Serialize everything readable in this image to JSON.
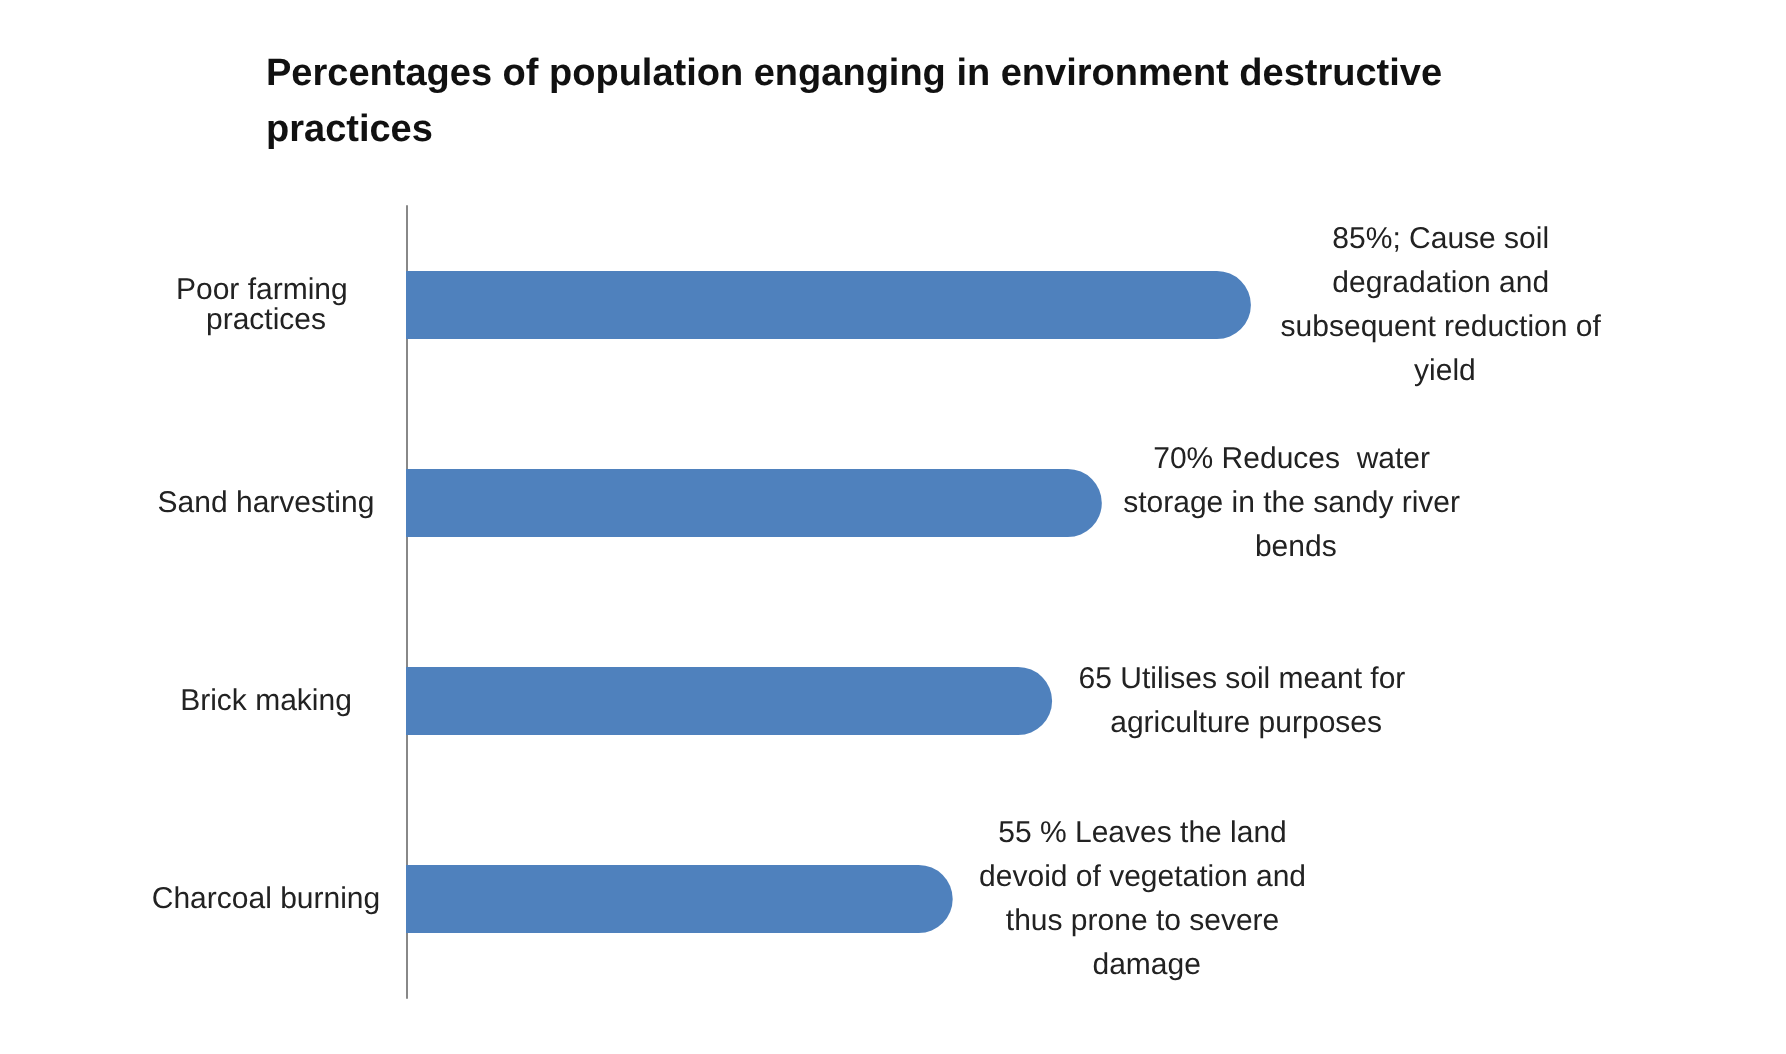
{
  "chart_data": {
    "type": "bar",
    "orientation": "horizontal",
    "title": "Percentages of population enganging in environment destructive practices",
    "categories": [
      "Poor farming practices",
      "Sand harvesting",
      "Brick making",
      "Charcoal burning"
    ],
    "values": [
      85,
      70,
      65,
      55
    ],
    "value_labels": [
      "85%; Cause soil degradation and subsequent reduction of yield",
      "70% Reduces  water storage in the sandy river bends",
      "65 Utilises soil meant for agriculture purposes",
      "55 % Leaves the land devoid of vegetation and thus prone to severe damage"
    ],
    "color": "#4f81bd",
    "grid": false
  }
}
